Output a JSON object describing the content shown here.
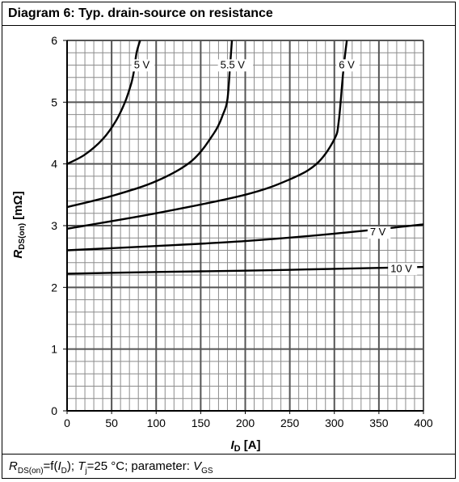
{
  "header": {
    "title": "Diagram 6: Typ. drain-source on resistance"
  },
  "footer": {
    "r_main": "R",
    "r_sub": "DS(on)",
    "eq_open": "=f(",
    "i_main": "I",
    "i_sub": "D",
    "sep1": "); ",
    "t_main": "T",
    "t_sub": "j",
    "temp": "=25 °C; parameter: ",
    "v_main": "V",
    "v_sub": "GS"
  },
  "chart_data": {
    "type": "line",
    "title": "Diagram 6: Typ. drain-source on resistance",
    "xlabel": "I_D [A]",
    "xlabel_main": "I",
    "xlabel_sub": "D",
    "xlabel_unit": " [A]",
    "ylabel": "R_DS(on) [mΩ]",
    "ylabel_main": "R",
    "ylabel_sub": "DS(on)",
    "ylabel_unit": " [mΩ]",
    "xlim": [
      0,
      400
    ],
    "ylim": [
      0,
      6
    ],
    "x_ticks": [
      0,
      50,
      100,
      150,
      200,
      250,
      300,
      350,
      400
    ],
    "y_ticks": [
      0,
      1,
      2,
      3,
      4,
      5,
      6
    ],
    "grid": true,
    "series": [
      {
        "name": "5 V",
        "label_at": [
          75,
          5.55
        ],
        "x": [
          0,
          20,
          40,
          55,
          65,
          72,
          75,
          78,
          82
        ],
        "y": [
          4.0,
          4.15,
          4.4,
          4.7,
          5.0,
          5.3,
          5.5,
          5.8,
          6.0
        ]
      },
      {
        "name": "5.5 V",
        "label_at": [
          172,
          5.55
        ],
        "x": [
          0,
          50,
          100,
          140,
          165,
          175,
          180,
          183,
          185
        ],
        "y": [
          3.3,
          3.48,
          3.72,
          4.05,
          4.5,
          4.8,
          5.05,
          5.6,
          6.0
        ]
      },
      {
        "name": "6 V",
        "label_at": [
          305,
          5.55
        ],
        "x": [
          0,
          100,
          200,
          250,
          280,
          300,
          305,
          310,
          314
        ],
        "y": [
          2.95,
          3.2,
          3.5,
          3.75,
          4.0,
          4.4,
          4.7,
          5.5,
          6.0
        ]
      },
      {
        "name": "7 V",
        "label_at": [
          340,
          2.84
        ],
        "x": [
          0,
          100,
          200,
          300,
          400
        ],
        "y": [
          2.6,
          2.67,
          2.75,
          2.87,
          3.02
        ]
      },
      {
        "name": "10 V",
        "label_at": [
          363,
          2.25
        ],
        "x": [
          0,
          100,
          200,
          300,
          400
        ],
        "y": [
          2.22,
          2.25,
          2.27,
          2.3,
          2.33
        ]
      }
    ]
  }
}
